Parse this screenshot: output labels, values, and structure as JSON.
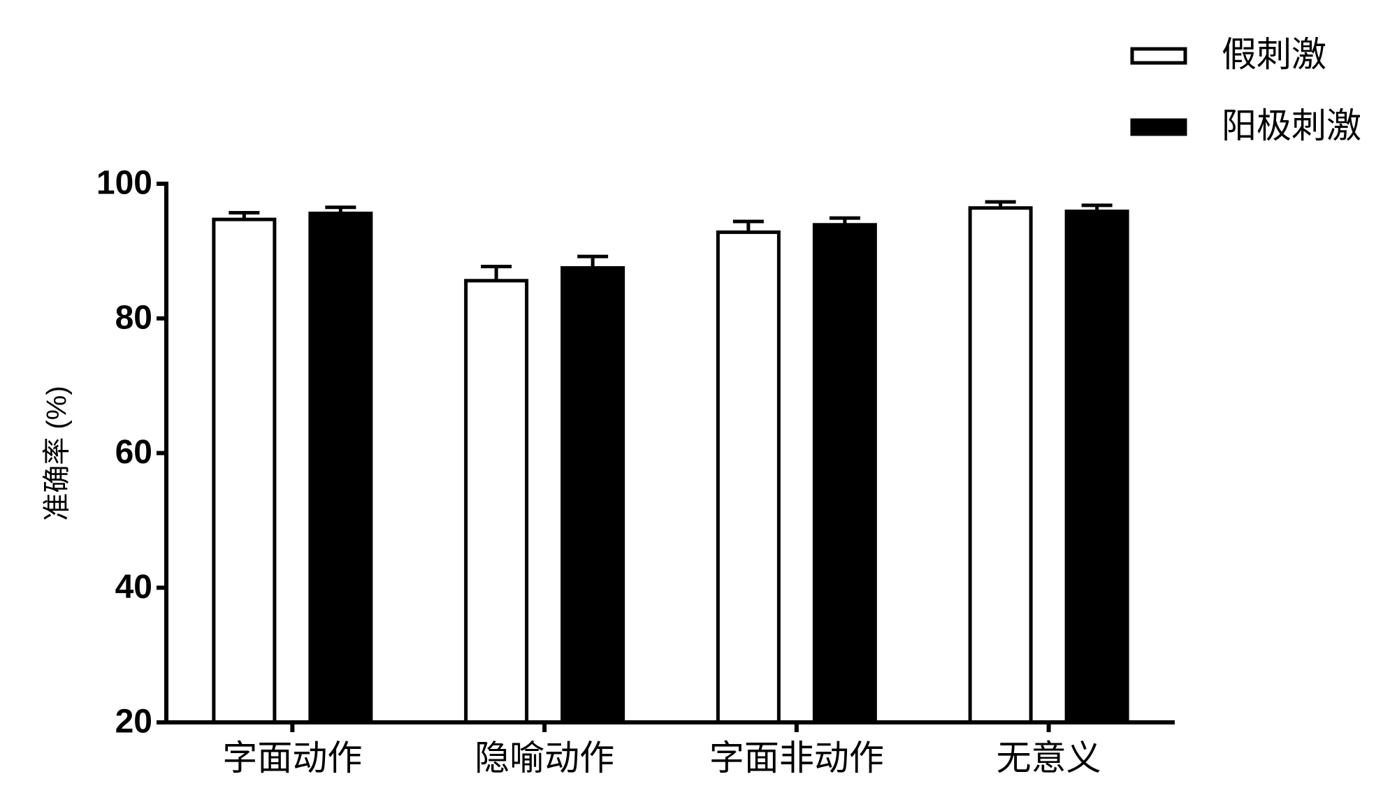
{
  "chart_data": {
    "type": "bar",
    "y_label": "准确率 (%)",
    "categories": [
      "字面动作",
      "隐喻动作",
      "字面非动作",
      "无意义"
    ],
    "series": [
      {
        "name": "假刺激",
        "color": "#ffffff",
        "values": [
          94.7,
          85.6,
          92.8,
          96.4
        ],
        "errors": [
          1.0,
          2.1,
          1.6,
          0.9
        ]
      },
      {
        "name": "阳极刺激",
        "color": "#000000",
        "values": [
          95.6,
          87.5,
          93.9,
          95.9
        ],
        "errors": [
          0.9,
          1.7,
          1.0,
          0.9
        ]
      }
    ],
    "ylim": [
      20,
      100
    ],
    "yticks": [
      20,
      40,
      60,
      80,
      100
    ],
    "legend": "top-right"
  }
}
